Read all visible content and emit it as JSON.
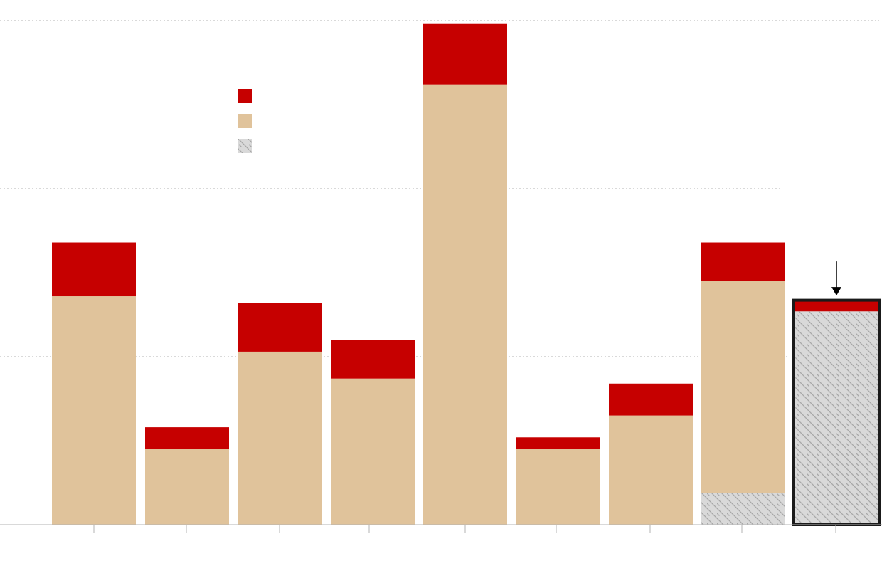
{
  "chart_data": {
    "type": "bar",
    "stacked": true,
    "title": "",
    "xlabel": "",
    "ylabel": "",
    "ylim": [
      0,
      3
    ],
    "grid": true,
    "legend_position": "top-left",
    "categories": [
      "",
      "",
      "",
      "",
      "",
      "",
      "",
      "",
      "",
      ""
    ],
    "series": [
      {
        "key": "pattern",
        "color": "#d9d9d9",
        "hatched": true,
        "values": [
          0,
          0,
          0,
          0,
          0,
          0,
          0,
          0,
          0.19,
          1.27
        ]
      },
      {
        "key": "tan",
        "color": "#e0c39b",
        "values": [
          1.36,
          0.45,
          1.03,
          0.87,
          2.62,
          0.45,
          0.65,
          1.26,
          0,
          0
        ]
      },
      {
        "key": "red",
        "color": "#c60000",
        "values": [
          0.32,
          0.13,
          0.29,
          0.23,
          0.36,
          0.07,
          0.19,
          0.23,
          0,
          0.06
        ]
      }
    ],
    "highlighted_index": 9,
    "arrow_marker_index": 9
  }
}
